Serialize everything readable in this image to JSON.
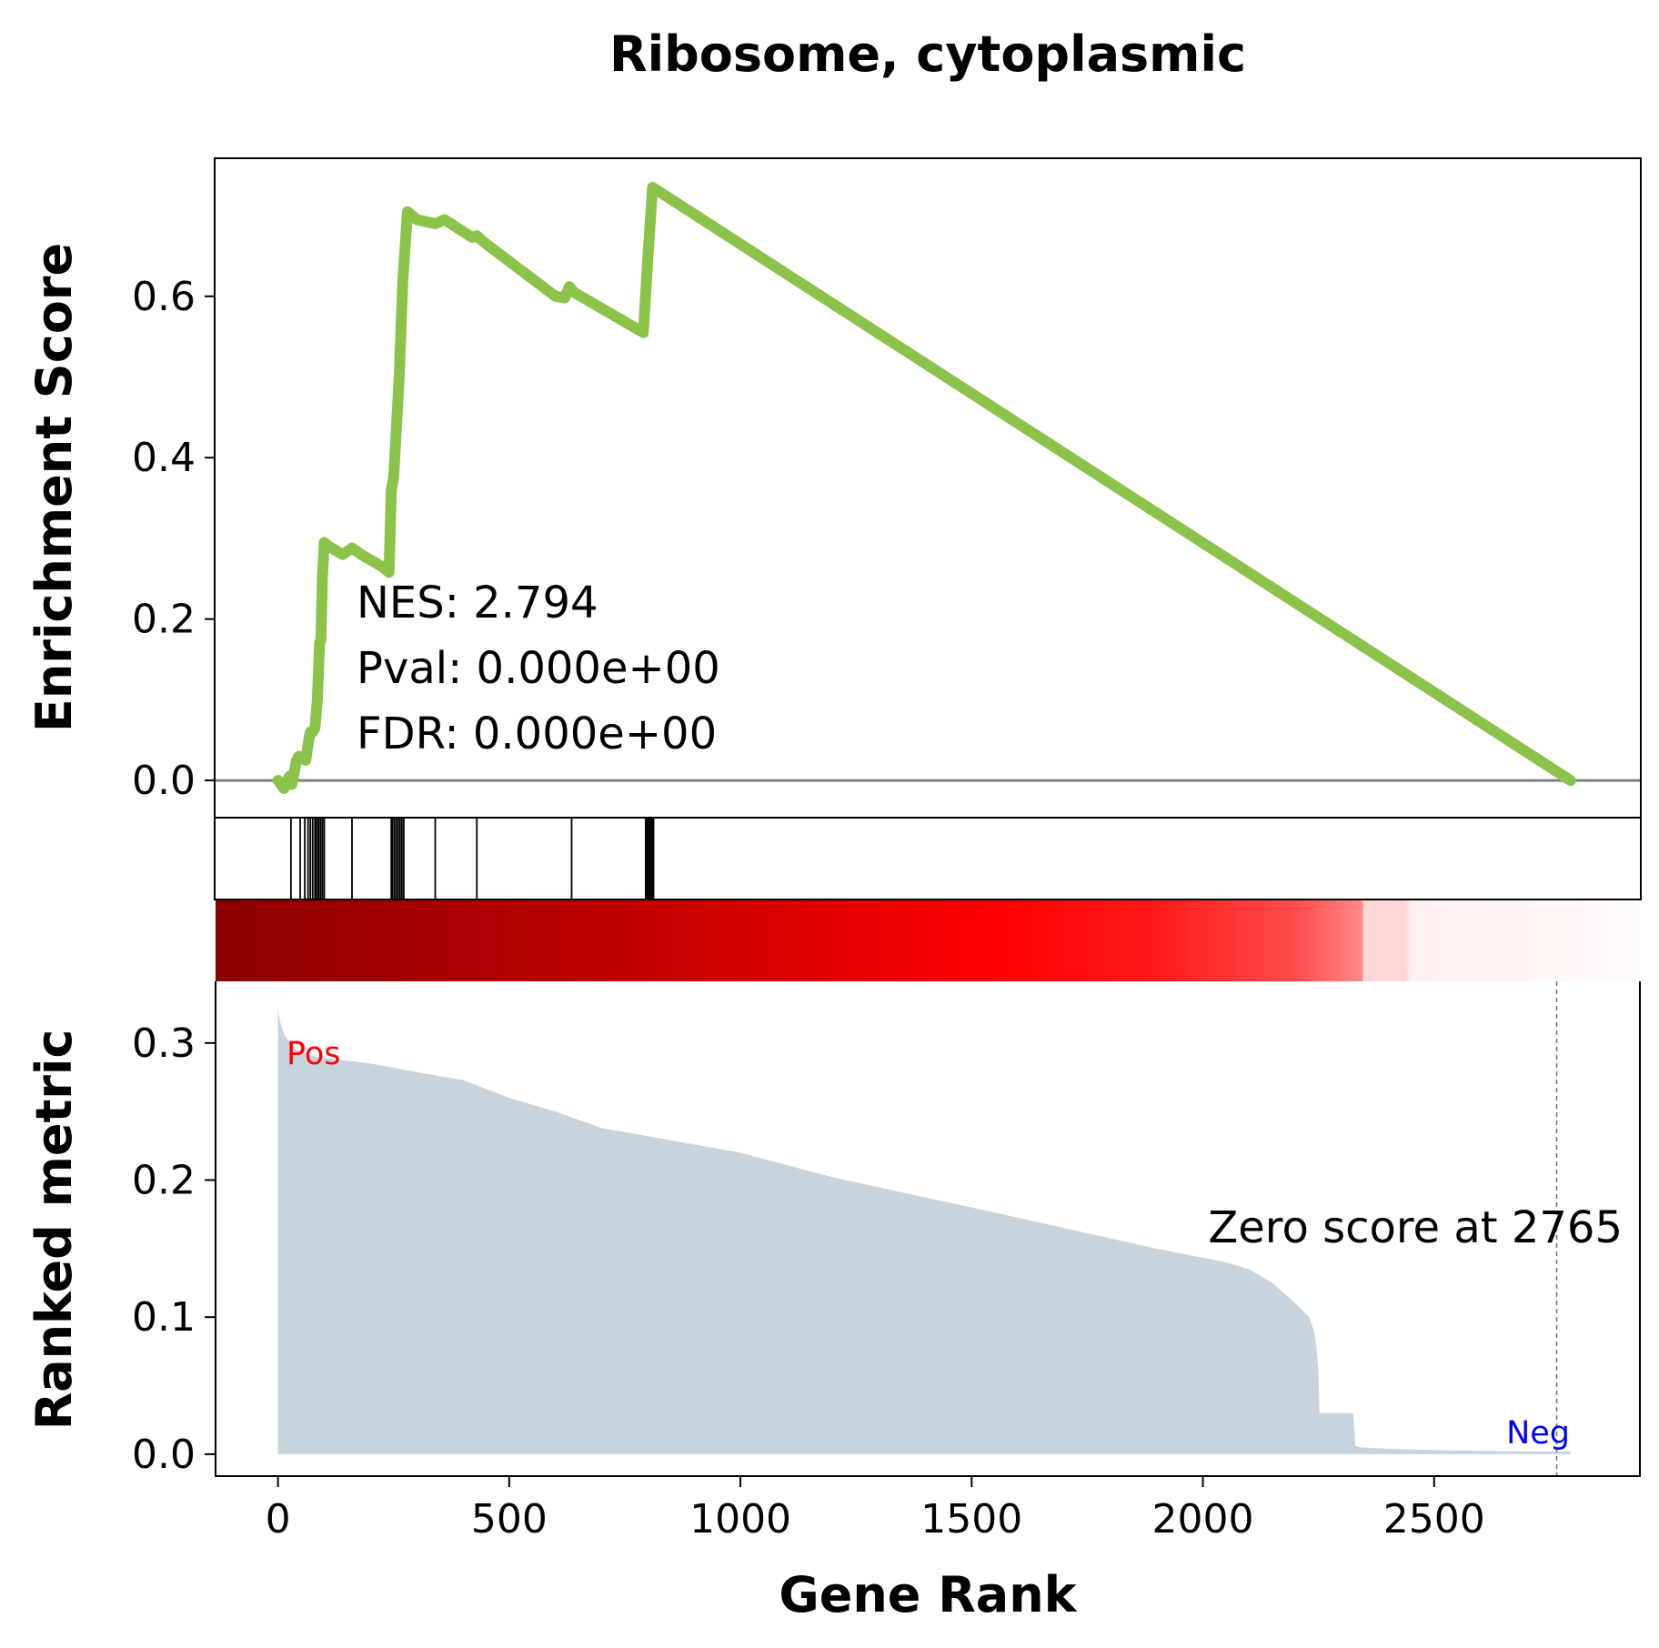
{
  "chart_data": [
    {
      "type": "line",
      "panel": "enrichment",
      "title": "Ribosome, cytoplasmic",
      "ylabel": "Enrichment Score",
      "ylim": [
        -0.045,
        0.77
      ],
      "yticks": [
        "0.0",
        "0.2",
        "0.4",
        "0.6"
      ],
      "line_color": "#8bc34a",
      "baseline": 0.0,
      "series": [
        {
          "x": [
            0,
            13,
            20,
            25,
            30,
            40,
            45,
            60,
            68,
            70,
            75,
            80,
            85,
            90,
            93,
            96,
            100,
            110,
            140,
            160,
            180,
            225,
            240,
            245,
            250,
            262,
            270,
            280,
            300,
            340,
            360,
            420,
            430,
            450,
            600,
            620,
            630,
            640,
            790,
            800,
            810,
            2795
          ],
          "y": [
            0.0,
            -0.01,
            0.0,
            0.005,
            -0.005,
            0.025,
            0.03,
            0.025,
            0.055,
            0.06,
            0.06,
            0.065,
            0.1,
            0.17,
            0.175,
            0.25,
            0.295,
            0.29,
            0.28,
            0.288,
            0.28,
            0.265,
            0.258,
            0.36,
            0.375,
            0.5,
            0.62,
            0.705,
            0.695,
            0.69,
            0.695,
            0.673,
            0.675,
            0.665,
            0.6,
            0.598,
            0.612,
            0.605,
            0.555,
            0.65,
            0.735,
            0.0
          ]
        }
      ],
      "annotations": [
        "NES: 2.794",
        "Pval: 0.000e+00",
        "FDR: 0.000e+00"
      ]
    },
    {
      "type": "hits",
      "panel": "gene-set-hits",
      "hit_ranks": [
        28,
        48,
        58,
        65,
        70,
        75,
        80,
        82,
        86,
        88,
        92,
        96,
        100,
        160,
        245,
        248,
        252,
        256,
        260,
        264,
        268,
        272,
        340,
        430,
        635,
        795,
        797,
        800,
        803,
        806,
        809,
        812
      ]
    },
    {
      "type": "heatmap",
      "panel": "rank-colorbar",
      "gradient_stops": [
        {
          "offset": 0.0,
          "color": "#8b0000"
        },
        {
          "offset": 0.3,
          "color": "#c20000"
        },
        {
          "offset": 0.55,
          "color": "#ff0000"
        },
        {
          "offset": 0.66,
          "color": "#ff1a1a"
        },
        {
          "offset": 0.76,
          "color": "#ff4d4d"
        },
        {
          "offset": 0.805,
          "color": "#ff8a8a"
        },
        {
          "offset": 0.806,
          "color": "#ffd6d6"
        },
        {
          "offset": 0.835,
          "color": "#ffd6d6"
        },
        {
          "offset": 0.84,
          "color": "#fff0f0"
        },
        {
          "offset": 1.0,
          "color": "#fffafa"
        }
      ]
    },
    {
      "type": "area",
      "panel": "ranked-metric",
      "xlabel": "Gene Rank",
      "ylabel": "Ranked metric",
      "xlim": [
        -135,
        2945
      ],
      "ylim": [
        -0.016,
        0.345
      ],
      "xticks": [
        "0",
        "500",
        "1000",
        "1500",
        "2000",
        "2500"
      ],
      "yticks": [
        "0.0",
        "0.1",
        "0.2",
        "0.3"
      ],
      "fill_color": "#c8d4dd",
      "series": [
        {
          "x": [
            0,
            5,
            15,
            40,
            80,
            200,
            330,
            400,
            500,
            600,
            700,
            800,
            1000,
            1200,
            1500,
            1700,
            1900,
            2050,
            2100,
            2150,
            2200,
            2230,
            2240,
            2245,
            2250,
            2252,
            2300,
            2325,
            2330,
            2340,
            2400,
            2500,
            2600,
            2700,
            2795
          ],
          "y": [
            0.325,
            0.315,
            0.305,
            0.295,
            0.29,
            0.285,
            0.277,
            0.273,
            0.26,
            0.25,
            0.238,
            0.232,
            0.22,
            0.202,
            0.18,
            0.165,
            0.15,
            0.14,
            0.135,
            0.125,
            0.11,
            0.1,
            0.09,
            0.08,
            0.06,
            0.03,
            0.03,
            0.03,
            0.006,
            0.005,
            0.004,
            0.003,
            0.0025,
            0.002,
            0.002
          ]
        }
      ],
      "zero_cross_rank": 2765,
      "zero_label": "Zero score at 2765",
      "pos_label": "Pos",
      "neg_label": "Neg",
      "pos_color": "#ff0000",
      "neg_color": "#0000ff"
    }
  ]
}
